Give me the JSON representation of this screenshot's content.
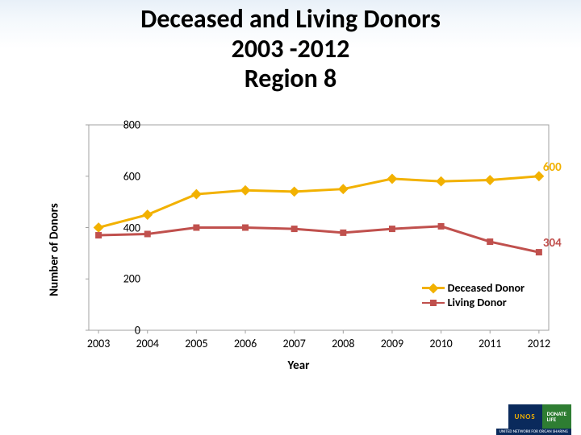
{
  "title_line1": "Deceased and Living Donors",
  "title_line2": "2003 -2012",
  "title_line3": "Region 8",
  "title_fontsize": 32,
  "chart": {
    "type": "line",
    "xlabel": "Year",
    "ylabel": "Number of Donors",
    "label_fontsize": 15,
    "tick_fontsize": 14,
    "ylim": [
      0,
      800
    ],
    "ytick_step": 200,
    "yticks": [
      0,
      200,
      400,
      600,
      800
    ],
    "categories": [
      "2003",
      "2004",
      "2005",
      "2006",
      "2007",
      "2008",
      "2009",
      "2010",
      "2011",
      "2012"
    ],
    "background_color": "#ffffff",
    "grid_color": "#c0c0c0",
    "grid_on": false,
    "axis_color": "#a0a0a0",
    "plot_border": true,
    "series": [
      {
        "name": "Deceased Donor",
        "color": "#f2b100",
        "marker": "diamond",
        "marker_size": 9,
        "line_width": 3,
        "values": [
          400,
          450,
          530,
          545,
          540,
          550,
          590,
          580,
          585,
          600
        ],
        "end_label": "600",
        "end_label_color": "#f2b100"
      },
      {
        "name": "Living Donor",
        "color": "#c0504d",
        "marker": "square",
        "marker_size": 8,
        "line_width": 3,
        "values": [
          370,
          375,
          400,
          400,
          395,
          380,
          395,
          405,
          345,
          304
        ],
        "end_label": "304",
        "end_label_color": "#c0504d"
      }
    ],
    "legend_position": "bottom-right",
    "legend_fontsize": 14
  },
  "footer": {
    "unos": "UNOS",
    "donate1": "DONATE",
    "donate2": "LIFE",
    "sub": "UNITED NETWORK FOR ORGAN SHARING"
  }
}
